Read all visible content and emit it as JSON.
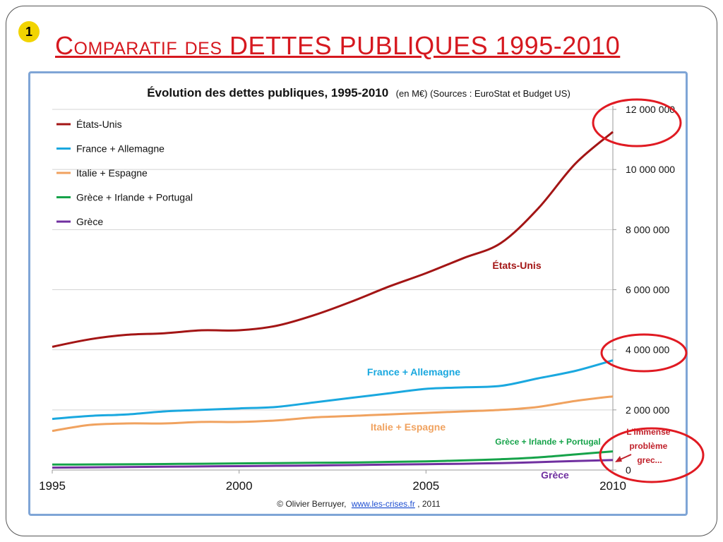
{
  "slide": {
    "bullet": "1",
    "title_part1": "Comparatif des",
    "title_part2": "DETTES PUBLIQUES 1995-2010"
  },
  "chart_data": {
    "type": "line",
    "title": "Évolution des dettes publiques, 1995-2010",
    "subtitle": "(en M€) (Sources : EuroStat et Budget US)",
    "xlabel": "",
    "ylabel": "",
    "x": [
      1995,
      1996,
      1997,
      1998,
      1999,
      2000,
      2001,
      2002,
      2003,
      2004,
      2005,
      2006,
      2007,
      2008,
      2009,
      2010
    ],
    "x_ticks": [
      "1995",
      "2000",
      "2005",
      "2010"
    ],
    "y_ticks": [
      "0",
      "2 000 000",
      "4 000 000",
      "6 000 000",
      "8 000 000",
      "10 000 000",
      "12 000 000"
    ],
    "ylim": [
      0,
      12000000
    ],
    "grid": "horizontal",
    "legend_position": "top-left",
    "series": [
      {
        "name": "États-Unis",
        "color": "#a31515",
        "values": [
          4100000,
          4350000,
          4500000,
          4550000,
          4650000,
          4650000,
          4800000,
          5150000,
          5600000,
          6100000,
          6550000,
          7050000,
          7550000,
          8700000,
          10200000,
          11250000
        ]
      },
      {
        "name": "France + Allemagne",
        "color": "#1aa8df",
        "values": [
          1700000,
          1800000,
          1850000,
          1950000,
          2000000,
          2050000,
          2100000,
          2250000,
          2400000,
          2550000,
          2700000,
          2750000,
          2800000,
          3050000,
          3300000,
          3650000
        ]
      },
      {
        "name": "Italie + Espagne",
        "color": "#f0a25f",
        "values": [
          1300000,
          1500000,
          1550000,
          1550000,
          1600000,
          1600000,
          1650000,
          1750000,
          1800000,
          1850000,
          1900000,
          1950000,
          2000000,
          2100000,
          2300000,
          2450000
        ]
      },
      {
        "name": "Grèce + Irlande + Portugal",
        "color": "#16a34a",
        "values": [
          180000,
          185000,
          190000,
          200000,
          210000,
          220000,
          230000,
          240000,
          250000,
          270000,
          290000,
          320000,
          360000,
          420000,
          520000,
          620000
        ]
      },
      {
        "name": "Grèce",
        "color": "#7030a0",
        "values": [
          80000,
          90000,
          100000,
          110000,
          120000,
          130000,
          140000,
          150000,
          165000,
          180000,
          195000,
          210000,
          230000,
          260000,
          300000,
          330000
        ]
      }
    ],
    "annotations": {
      "us": "États-Unis",
      "fr_de": "France + Allemagne",
      "it_es": "Italie + Espagne",
      "gr_ie_pt": "Grèce + Irlande + Portugal",
      "gr": "Grèce",
      "problem_line1": "L'immense",
      "problem_line2": "problème",
      "problem_line3": "grec..."
    },
    "credit": {
      "prefix": "© Olivier Berruyer,",
      "link": "www.les-crises.fr",
      "suffix": ", 2011"
    }
  }
}
